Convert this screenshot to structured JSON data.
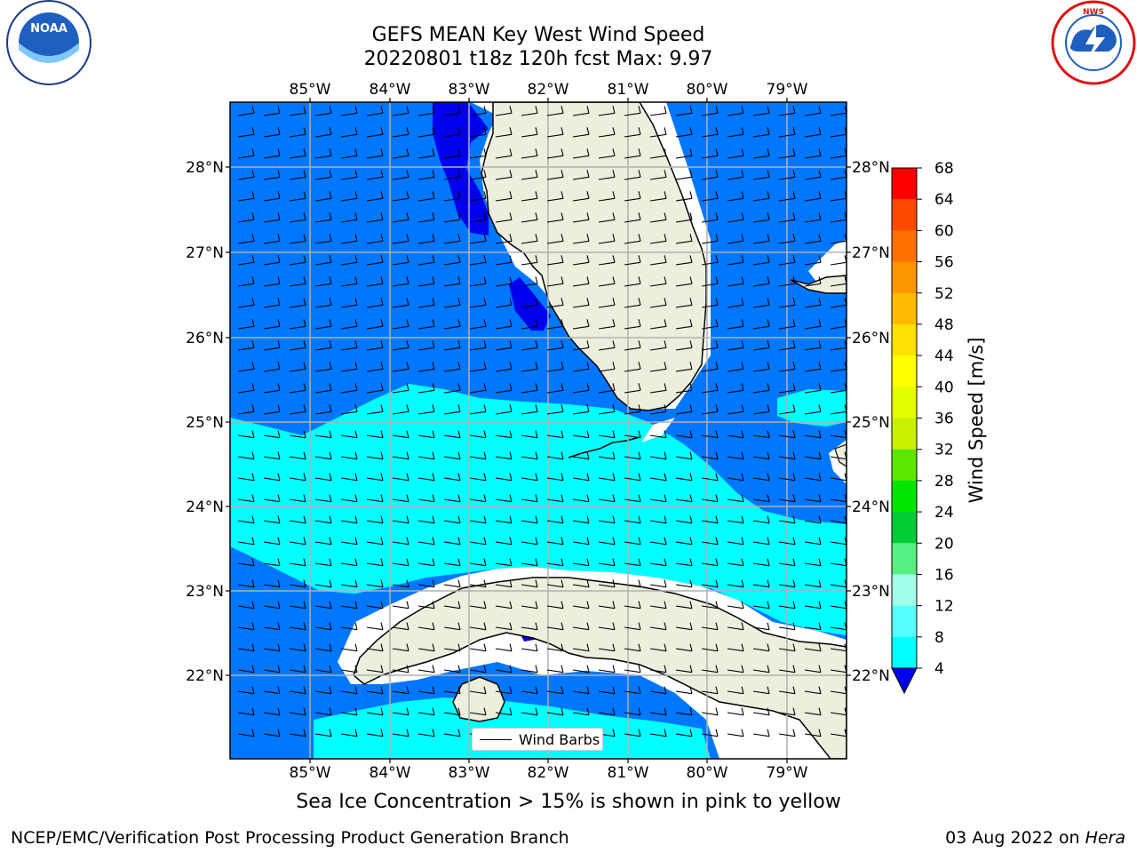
{
  "header": {
    "title_line1": "GEFS MEAN Key West Wind Speed",
    "title_line2": "20220801 t18z 120h fcst   Max: 9.97"
  },
  "logos": {
    "left": {
      "name": "NOAA",
      "ring_text": "NATIONAL OCEANIC AND ATMOSPHERIC ADMINISTRATION · U.S. DEPARTMENT OF COMMERCE"
    },
    "right": {
      "name": "NATIONAL WEATHER SERVICE"
    }
  },
  "map": {
    "lon_labels": [
      "85°W",
      "84°W",
      "83°W",
      "82°W",
      "81°W",
      "80°W",
      "79°W"
    ],
    "lat_labels": [
      "28°N",
      "27°N",
      "26°N",
      "25°N",
      "24°N",
      "23°N",
      "22°N"
    ],
    "legend_label": "Wind Barbs",
    "colors": {
      "land": "#eeeedd",
      "speed_4_8": "#0077ff",
      "speed_8_12": "#00ffff",
      "speed_below_4": "#0000ee",
      "no_data": "#ffffff",
      "grid": "#b0b0b0"
    }
  },
  "colorbar": {
    "label": "Wind Speed [m/s]",
    "ticks": [
      "68",
      "64",
      "60",
      "56",
      "52",
      "48",
      "44",
      "40",
      "36",
      "32",
      "28",
      "24",
      "20",
      "16",
      "12",
      "8",
      "4"
    ],
    "colors": [
      "#ff0000",
      "#ff2500",
      "#ff4a00",
      "#ff7000",
      "#ff9500",
      "#ffbb00",
      "#ffe000",
      "#ffff00",
      "#e6ff00",
      "#c8f000",
      "#5ce600",
      "#00e600",
      "#00cc33",
      "#55f082",
      "#a4ffe8",
      "#55ffff",
      "#00ffff",
      "#0077ff",
      "#0000ee"
    ]
  },
  "caption": "Sea Ice Concentration > 15% is shown in pink to yellow",
  "footer": {
    "left": "NCEP/EMC/Verification Post Processing Product Generation Branch",
    "right_prefix": "03 Aug 2022 on ",
    "right_host": "Hera"
  }
}
